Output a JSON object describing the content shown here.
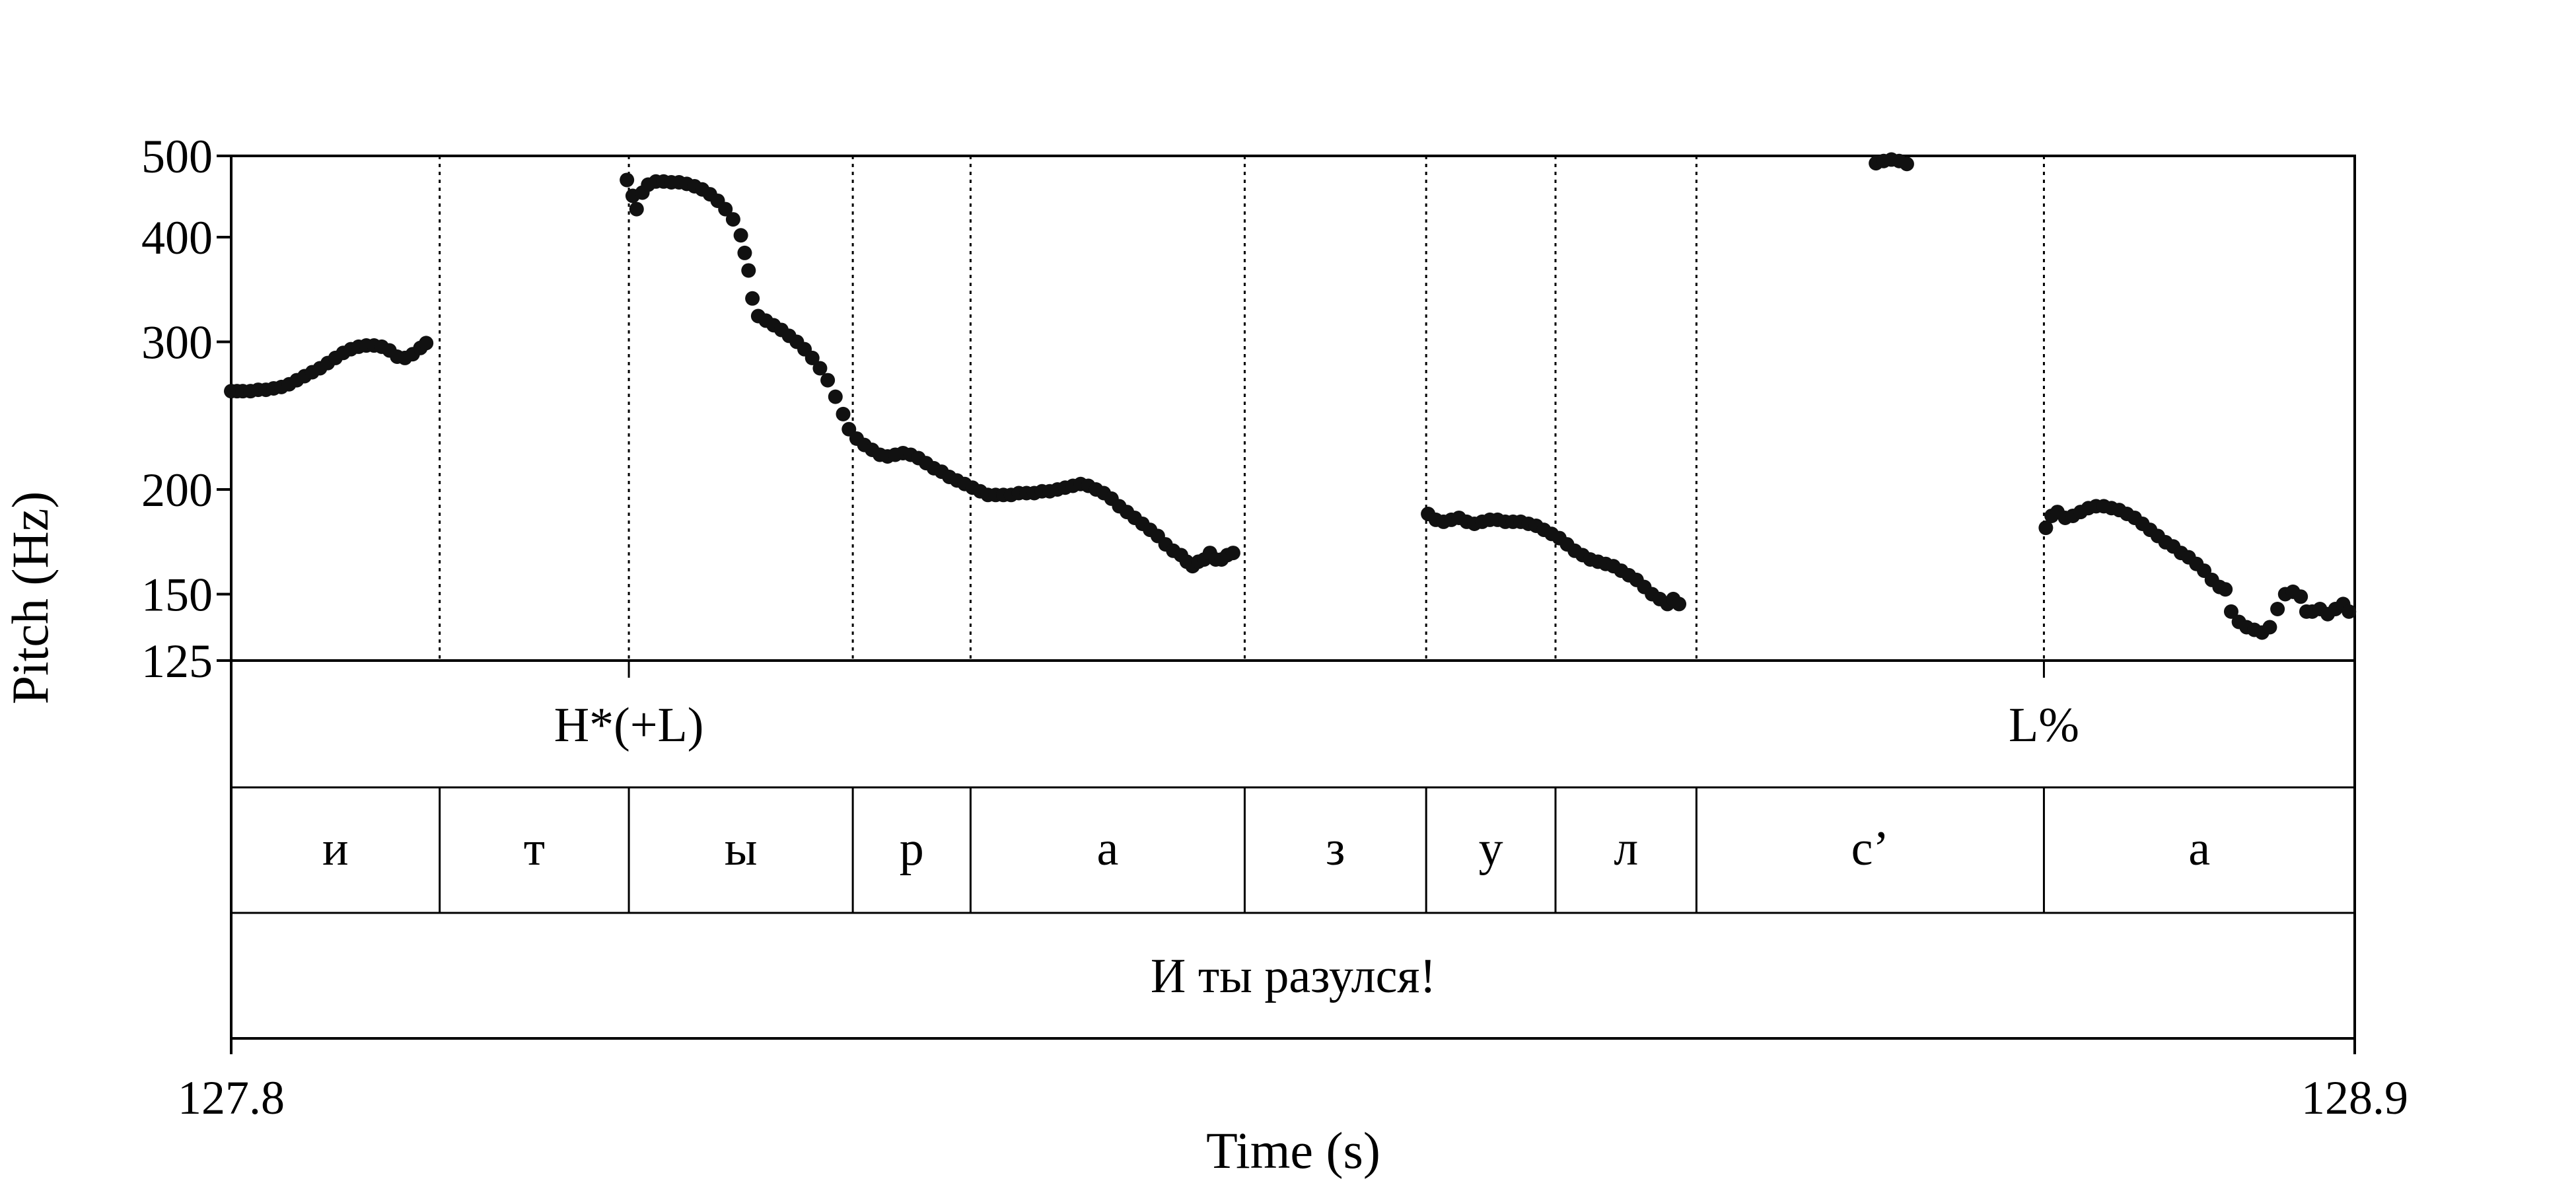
{
  "chart_data": {
    "type": "scatter",
    "title": "",
    "xlabel": "Time (s)",
    "ylabel": "Pitch (Hz)",
    "xlim": [
      127.8,
      128.9
    ],
    "ylim": [
      125,
      500
    ],
    "y_scale": "log",
    "x_tick_labels": [
      "127.8",
      "128.9"
    ],
    "y_ticks": [
      125,
      150,
      200,
      300,
      400,
      500
    ],
    "y_tick_labels": [
      "125",
      "150",
      "200",
      "300",
      "400",
      "500"
    ],
    "legend": "none",
    "marker_color": "#111111",
    "boundary_times": [
      127.908,
      128.006,
      128.122,
      128.183,
      128.325,
      128.419,
      128.486,
      128.559,
      128.739
    ],
    "tone_labels": [
      {
        "t": 128.006,
        "label": "H*(+L)"
      },
      {
        "t": 128.739,
        "label": "L%"
      }
    ],
    "segments": [
      {
        "start": 127.8,
        "end": 127.908,
        "label": "и"
      },
      {
        "start": 127.908,
        "end": 128.006,
        "label": "т"
      },
      {
        "start": 128.006,
        "end": 128.122,
        "label": "ы"
      },
      {
        "start": 128.122,
        "end": 128.183,
        "label": "р"
      },
      {
        "start": 128.183,
        "end": 128.325,
        "label": "а"
      },
      {
        "start": 128.325,
        "end": 128.419,
        "label": "з"
      },
      {
        "start": 128.419,
        "end": 128.486,
        "label": "у"
      },
      {
        "start": 128.486,
        "end": 128.559,
        "label": "л"
      },
      {
        "start": 128.559,
        "end": 128.739,
        "label": "с’"
      },
      {
        "start": 128.739,
        "end": 128.9,
        "label": "а"
      }
    ],
    "sentence": "И ты разулся!",
    "series": [
      {
        "points": [
          [
            127.8,
            262
          ],
          [
            127.803,
            262
          ],
          [
            127.806,
            262
          ],
          [
            127.81,
            262
          ],
          [
            127.814,
            263
          ],
          [
            127.818,
            263
          ],
          [
            127.822,
            264
          ],
          [
            127.826,
            265
          ],
          [
            127.83,
            267
          ],
          [
            127.834,
            270
          ],
          [
            127.838,
            273
          ],
          [
            127.842,
            276
          ],
          [
            127.846,
            279
          ],
          [
            127.85,
            283
          ],
          [
            127.854,
            287
          ],
          [
            127.858,
            291
          ],
          [
            127.862,
            294
          ],
          [
            127.866,
            296
          ],
          [
            127.87,
            297
          ],
          [
            127.874,
            297
          ],
          [
            127.878,
            296
          ],
          [
            127.882,
            293
          ],
          [
            127.886,
            288
          ],
          [
            127.89,
            287
          ],
          [
            127.894,
            290
          ],
          [
            127.898,
            295
          ],
          [
            127.901,
            299
          ]
        ]
      },
      {
        "points": [
          [
            128.005,
            468
          ],
          [
            128.008,
            448
          ],
          [
            128.01,
            432
          ],
          [
            128.013,
            452
          ],
          [
            128.016,
            462
          ],
          [
            128.02,
            466
          ],
          [
            128.024,
            466
          ],
          [
            128.028,
            465
          ],
          [
            128.032,
            465
          ],
          [
            128.036,
            463
          ],
          [
            128.04,
            460
          ],
          [
            128.044,
            456
          ],
          [
            128.048,
            450
          ],
          [
            128.052,
            442
          ],
          [
            128.056,
            432
          ],
          [
            128.06,
            420
          ],
          [
            128.064,
            402
          ],
          [
            128.066,
            383
          ],
          [
            128.068,
            365
          ],
          [
            128.07,
            338
          ],
          [
            128.073,
            322
          ],
          [
            128.077,
            318
          ],
          [
            128.081,
            314
          ],
          [
            128.085,
            310
          ],
          [
            128.089,
            305
          ],
          [
            128.093,
            300
          ],
          [
            128.097,
            294
          ],
          [
            128.101,
            287
          ],
          [
            128.105,
            279
          ],
          [
            128.109,
            270
          ],
          [
            128.113,
            258
          ],
          [
            128.117,
            246
          ],
          [
            128.12,
            236
          ],
          [
            128.124,
            230
          ],
          [
            128.128,
            226
          ],
          [
            128.132,
            223
          ],
          [
            128.136,
            220
          ],
          [
            128.14,
            219
          ],
          [
            128.144,
            220
          ],
          [
            128.148,
            221
          ],
          [
            128.152,
            220
          ],
          [
            128.156,
            218
          ],
          [
            128.16,
            215
          ],
          [
            128.164,
            212
          ],
          [
            128.168,
            210
          ],
          [
            128.172,
            207
          ],
          [
            128.176,
            205
          ],
          [
            128.18,
            203
          ],
          [
            128.184,
            201
          ],
          [
            128.188,
            199
          ],
          [
            128.192,
            197
          ],
          [
            128.196,
            197
          ],
          [
            128.2,
            197
          ],
          [
            128.204,
            197
          ],
          [
            128.208,
            198
          ],
          [
            128.212,
            198
          ],
          [
            128.216,
            198
          ],
          [
            128.22,
            199
          ],
          [
            128.224,
            199
          ],
          [
            128.228,
            200
          ],
          [
            128.232,
            201
          ],
          [
            128.236,
            202
          ],
          [
            128.24,
            203
          ],
          [
            128.244,
            202
          ],
          [
            128.248,
            200
          ],
          [
            128.252,
            198
          ],
          [
            128.256,
            195
          ],
          [
            128.26,
            191
          ],
          [
            128.264,
            188
          ],
          [
            128.268,
            185
          ],
          [
            128.272,
            182
          ],
          [
            128.276,
            179
          ],
          [
            128.28,
            176
          ],
          [
            128.284,
            172
          ],
          [
            128.288,
            169
          ],
          [
            128.292,
            167
          ],
          [
            128.295,
            164
          ],
          [
            128.298,
            162
          ],
          [
            128.301,
            164
          ],
          [
            128.304,
            165
          ],
          [
            128.307,
            168
          ],
          [
            128.31,
            165
          ],
          [
            128.313,
            165
          ],
          [
            128.316,
            167
          ],
          [
            128.319,
            168
          ]
        ]
      },
      {
        "points": [
          [
            128.42,
            187
          ],
          [
            128.424,
            184
          ],
          [
            128.428,
            183
          ],
          [
            128.432,
            184
          ],
          [
            128.436,
            185
          ],
          [
            128.44,
            183
          ],
          [
            128.444,
            182
          ],
          [
            128.448,
            183
          ],
          [
            128.452,
            184
          ],
          [
            128.456,
            184
          ],
          [
            128.46,
            183
          ],
          [
            128.464,
            183
          ],
          [
            128.468,
            183
          ],
          [
            128.472,
            182
          ],
          [
            128.476,
            181
          ],
          [
            128.48,
            179
          ],
          [
            128.484,
            177
          ],
          [
            128.488,
            175
          ],
          [
            128.492,
            172
          ],
          [
            128.496,
            169
          ],
          [
            128.5,
            167
          ],
          [
            128.504,
            165
          ],
          [
            128.508,
            164
          ],
          [
            128.512,
            163
          ],
          [
            128.516,
            162
          ],
          [
            128.52,
            160
          ],
          [
            128.524,
            158
          ],
          [
            128.528,
            156
          ],
          [
            128.532,
            153
          ],
          [
            128.536,
            150
          ],
          [
            128.54,
            148
          ],
          [
            128.544,
            146
          ],
          [
            128.547,
            148
          ],
          [
            128.55,
            146
          ]
        ]
      },
      {
        "points": [
          [
            128.652,
            490
          ],
          [
            128.656,
            493
          ],
          [
            128.66,
            495
          ],
          [
            128.664,
            493
          ],
          [
            128.668,
            489
          ]
        ]
      },
      {
        "points": [
          [
            128.74,
            180
          ],
          [
            128.743,
            186
          ],
          [
            128.746,
            188
          ],
          [
            128.75,
            185
          ],
          [
            128.754,
            186
          ],
          [
            128.758,
            188
          ],
          [
            128.762,
            190
          ],
          [
            128.766,
            191
          ],
          [
            128.77,
            191
          ],
          [
            128.774,
            190
          ],
          [
            128.778,
            189
          ],
          [
            128.782,
            187
          ],
          [
            128.786,
            185
          ],
          [
            128.79,
            182
          ],
          [
            128.794,
            179
          ],
          [
            128.798,
            176
          ],
          [
            128.802,
            173
          ],
          [
            128.806,
            171
          ],
          [
            128.81,
            168
          ],
          [
            128.814,
            166
          ],
          [
            128.818,
            163
          ],
          [
            128.822,
            160
          ],
          [
            128.826,
            156
          ],
          [
            128.83,
            153
          ],
          [
            128.833,
            152
          ],
          [
            128.836,
            143
          ],
          [
            128.84,
            139
          ],
          [
            128.844,
            137
          ],
          [
            128.848,
            136
          ],
          [
            128.852,
            135
          ],
          [
            128.856,
            137
          ],
          [
            128.86,
            144
          ],
          [
            128.864,
            150
          ],
          [
            128.868,
            151
          ],
          [
            128.872,
            149
          ],
          [
            128.875,
            143
          ],
          [
            128.878,
            143
          ],
          [
            128.882,
            144
          ],
          [
            128.886,
            142
          ],
          [
            128.89,
            144
          ],
          [
            128.894,
            146
          ],
          [
            128.897,
            143
          ]
        ]
      }
    ]
  }
}
